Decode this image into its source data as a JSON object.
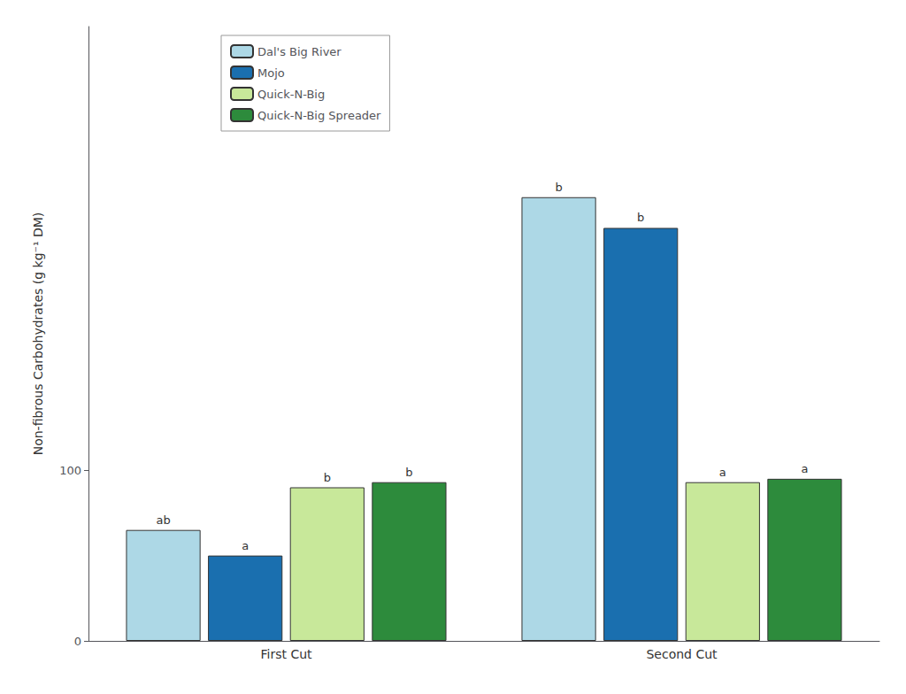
{
  "chart_data": {
    "type": "bar",
    "categories": [
      "First Cut",
      "Second Cut"
    ],
    "series": [
      {
        "name": "Dal's Big River",
        "color": "#add8e6",
        "values": [
          65,
          260
        ],
        "letters": [
          "ab",
          "b"
        ]
      },
      {
        "name": "Mojo",
        "color": "#1a6faf",
        "values": [
          50,
          242
        ],
        "letters": [
          "a",
          "b"
        ]
      },
      {
        "name": "Quick-N-Big",
        "color": "#c8e89a",
        "values": [
          90,
          93
        ],
        "letters": [
          "b",
          "a"
        ]
      },
      {
        "name": "Quick-N-Big Spreader",
        "color": "#2d8b3c",
        "values": [
          93,
          95
        ],
        "letters": [
          "b",
          "a"
        ]
      }
    ],
    "ylabel": "Non-fibrous Carbohydrates (g kg⁻¹ DM)",
    "ylim": [
      0,
      360
    ],
    "yticks": [
      0,
      100
    ],
    "grid": false,
    "legend": "upper left"
  }
}
